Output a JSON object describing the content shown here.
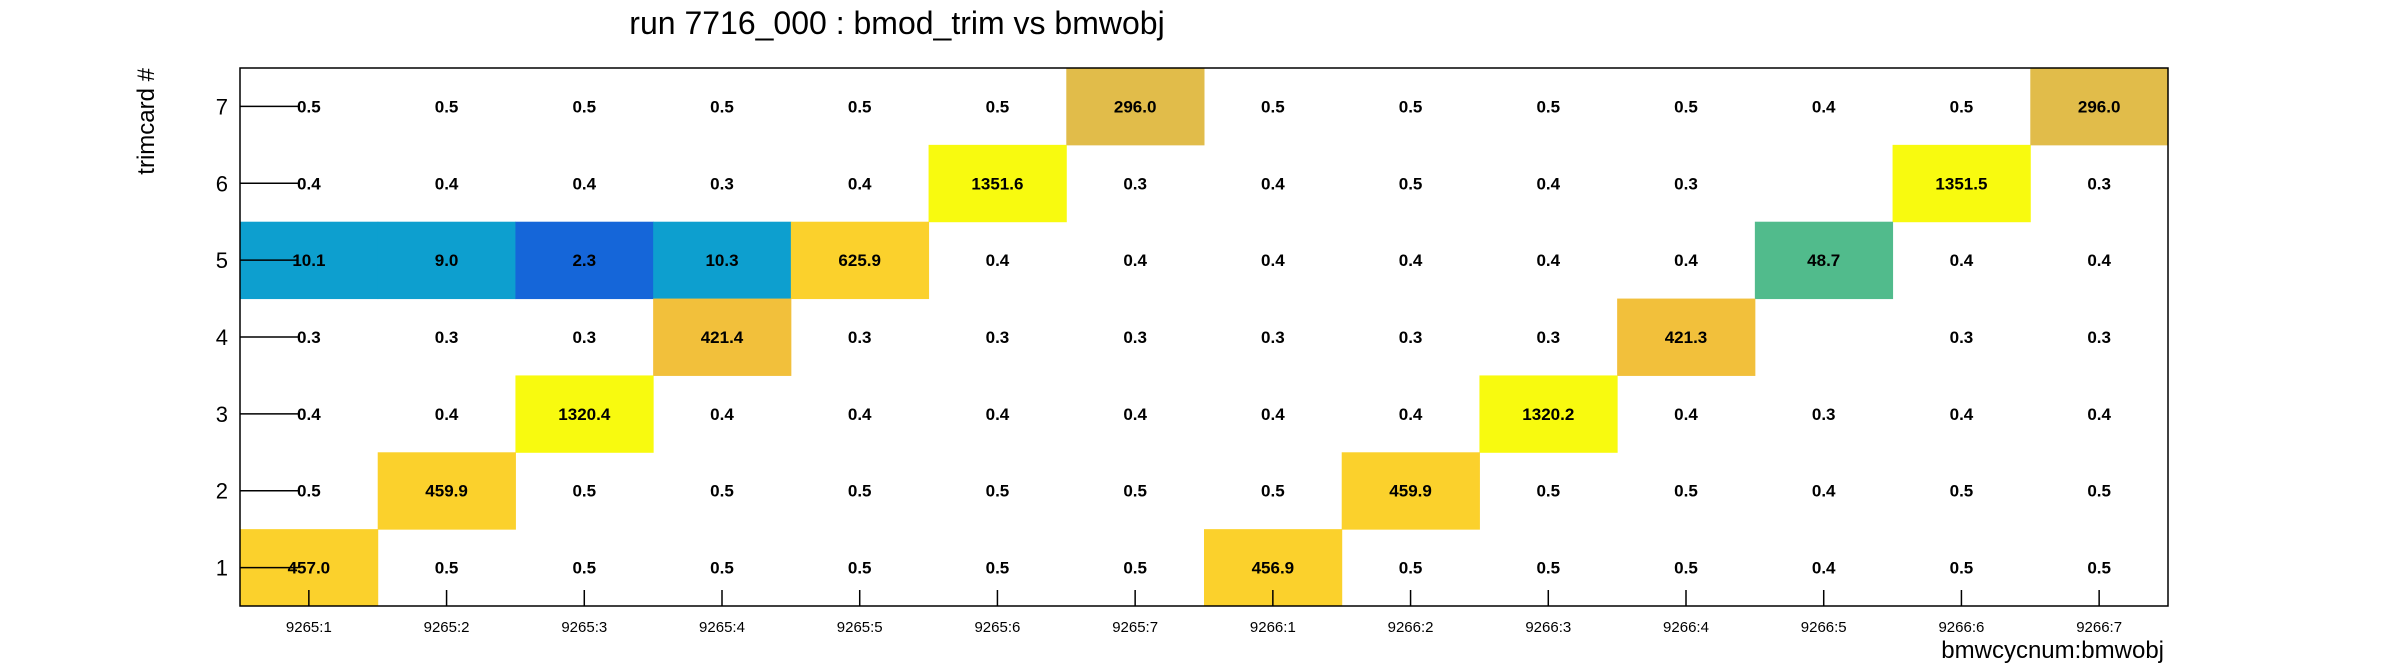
{
  "chart_data": {
    "type": "heatmap",
    "title": "run 7716_000 : bmod_trim vs bmwobj",
    "xlabel": "bmwcycnum:bmwobj",
    "ylabel": "trimcard #",
    "x_categories": [
      "9265:1",
      "9265:2",
      "9265:3",
      "9265:4",
      "9265:5",
      "9265:6",
      "9265:7",
      "9266:1",
      "9266:2",
      "9266:3",
      "9266:4",
      "9266:5",
      "9266:6",
      "9266:7"
    ],
    "y_categories": [
      "1",
      "2",
      "3",
      "4",
      "5",
      "6",
      "7"
    ],
    "rows": [
      {
        "y": "7",
        "values": [
          0.5,
          0.5,
          0.5,
          0.5,
          0.5,
          0.5,
          296.0,
          0.5,
          0.5,
          0.5,
          0.5,
          0.4,
          0.5,
          296.0
        ]
      },
      {
        "y": "6",
        "values": [
          0.4,
          0.4,
          0.4,
          0.3,
          0.4,
          1351.6,
          0.3,
          0.4,
          0.5,
          0.4,
          0.3,
          null,
          1351.5,
          0.3
        ]
      },
      {
        "y": "5",
        "values": [
          10.1,
          9.0,
          2.3,
          10.3,
          625.9,
          0.4,
          0.4,
          0.4,
          0.4,
          0.4,
          0.4,
          48.7,
          0.4,
          0.4
        ]
      },
      {
        "y": "4",
        "values": [
          0.3,
          0.3,
          0.3,
          421.4,
          0.3,
          0.3,
          0.3,
          0.3,
          0.3,
          0.3,
          421.3,
          null,
          0.3,
          0.3
        ]
      },
      {
        "y": "3",
        "values": [
          0.4,
          0.4,
          1320.4,
          0.4,
          0.4,
          0.4,
          0.4,
          0.4,
          0.4,
          1320.2,
          0.4,
          0.3,
          0.4,
          0.4
        ]
      },
      {
        "y": "2",
        "values": [
          0.5,
          459.9,
          0.5,
          0.5,
          0.5,
          0.5,
          0.5,
          0.5,
          459.9,
          0.5,
          0.5,
          0.4,
          0.5,
          0.5
        ]
      },
      {
        "y": "1",
        "values": [
          457.0,
          0.5,
          0.5,
          0.5,
          0.5,
          0.5,
          0.5,
          456.9,
          0.5,
          0.5,
          0.5,
          0.4,
          0.5,
          0.5
        ]
      }
    ],
    "colors": {
      "296.0": "#e1bc4a",
      "1351.6": "#f8fa0f",
      "1351.5": "#f8fa0f",
      "10.1": "#0d9fcf",
      "9.0": "#0d9fcf",
      "2.3": "#1566d9",
      "10.3": "#0d9fcf",
      "625.9": "#fbd12c",
      "48.7": "#51bb8c",
      "421.4": "#f2c03b",
      "421.3": "#f2c03b",
      "1320.4": "#f8fa0f",
      "1320.2": "#f8fa0f",
      "459.9": "#fbd12c",
      "457.0": "#fbd12c",
      "456.9": "#fbd12c"
    },
    "grid": false,
    "legend": "none"
  }
}
